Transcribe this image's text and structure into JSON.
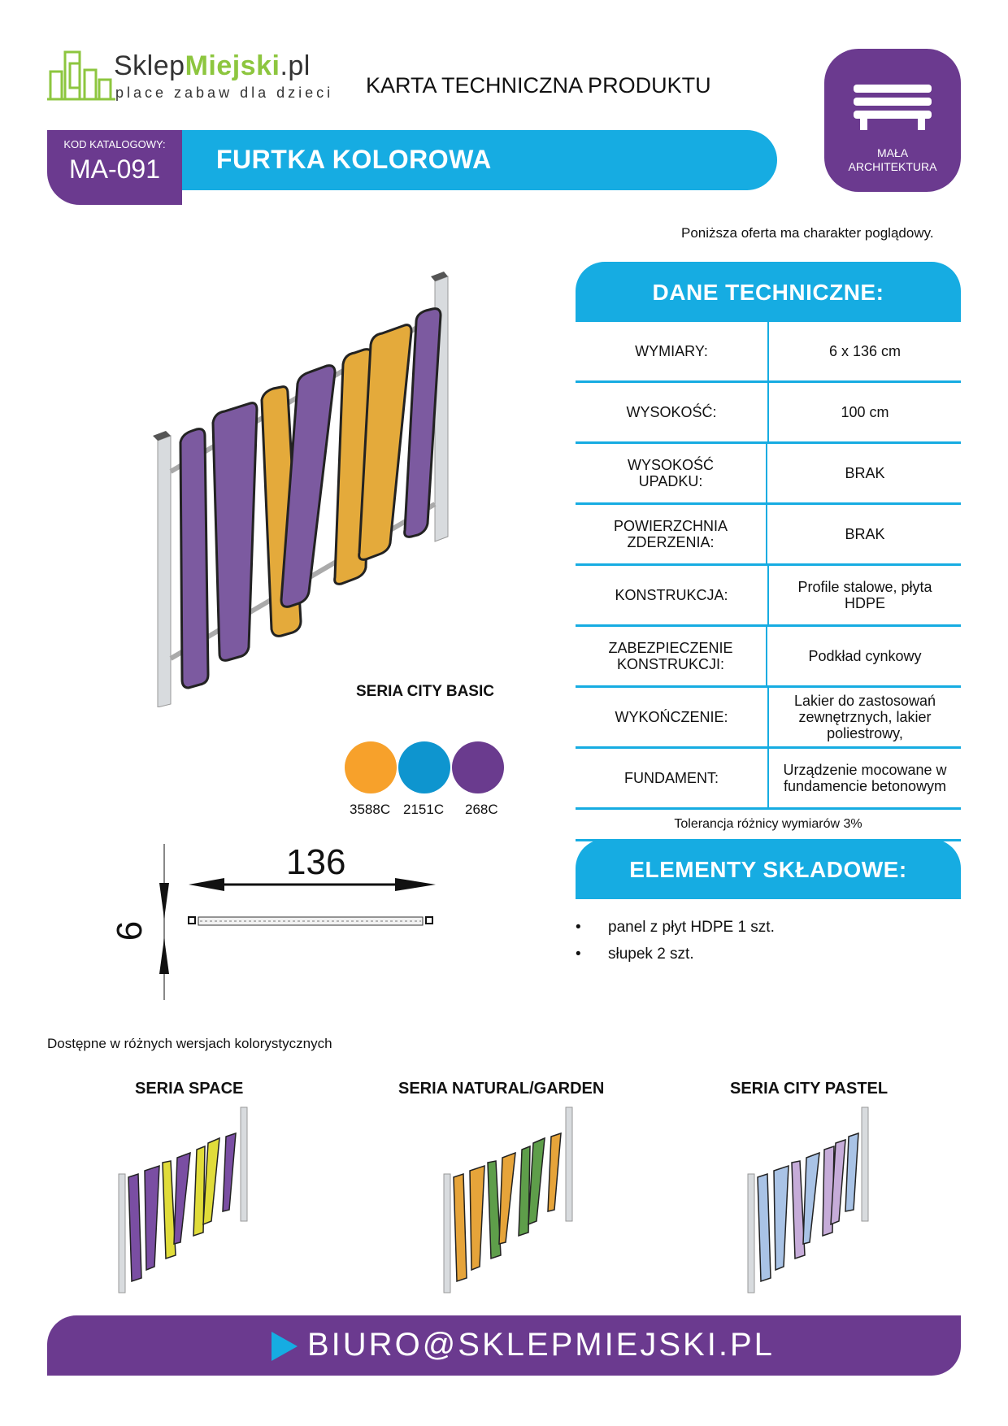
{
  "logo": {
    "brand_part1": "Sklep",
    "brand_part2": "Miejski",
    "brand_part3": ".pl",
    "tagline": "place zabaw dla dzieci"
  },
  "doc_title": "KARTA TECHNICZNA PRODUKTU",
  "category": {
    "icon": "bench-icon",
    "label_line1": "MAŁA",
    "label_line2": "ARCHITEKTURA"
  },
  "product": {
    "code_label": "KOD KATALOGOWY:",
    "code": "MA-091",
    "name": "FURTKA KOLOROWA"
  },
  "disclaimer": "Poniższa oferta ma charakter poglądowy.",
  "specs": {
    "title": "DANE TECHNICZNE:",
    "rows": [
      {
        "label": "WYMIARY:",
        "value": "6 x 136 cm"
      },
      {
        "label": "WYSOKOŚĆ:",
        "value": "100 cm"
      },
      {
        "label": "WYSOKOŚĆ UPADKU:",
        "value": "BRAK"
      },
      {
        "label": "POWIERZCHNIA ZDERZENIA:",
        "value": "BRAK"
      },
      {
        "label": "KONSTRUKCJA:",
        "value": "Profile stalowe, płyta HDPE"
      },
      {
        "label": "ZABEZPIECZENIE KONSTRUKCJI:",
        "value": "Podkład cynkowy"
      },
      {
        "label": "WYKOŃCZENIE:",
        "value": "Lakier do zastosowań zewnętrznych, lakier poliestrowy,"
      },
      {
        "label": "FUNDAMENT:",
        "value": "Urządzenie mocowane w fundamencie betonowym"
      }
    ],
    "tolerance": "Tolerancja różnicy wymiarów 3%"
  },
  "elements": {
    "title": "ELEMENTY SKŁADOWE:",
    "items": [
      "panel z płyt HDPE 1 szt.",
      "słupek 2 szt."
    ]
  },
  "main_series": "SERIA CITY BASIC",
  "colors": [
    {
      "code": "3588C",
      "hex": "#f7a12b"
    },
    {
      "code": "2151C",
      "hex": "#0e95cf"
    },
    {
      "code": "268C",
      "hex": "#6a3b8e"
    }
  ],
  "dimensions": {
    "width": "136",
    "depth": "6"
  },
  "available_note": "Dostępne w różnych wersjach kolorystycznych",
  "series": [
    {
      "name": "SERIA SPACE",
      "colors": [
        "#7a4ea3",
        "#e0dc3a"
      ]
    },
    {
      "name": "SERIA NATURAL/GARDEN",
      "colors": [
        "#e6a43a",
        "#5e9e4a"
      ]
    },
    {
      "name": "SERIA CITY PASTEL",
      "colors": [
        "#a9c3e6",
        "#c6acd9"
      ]
    }
  ],
  "footer": {
    "email": "BIURO@SKLEPMIEJSKI.PL"
  },
  "brand_colors": {
    "purple": "#6b3a8f",
    "blue": "#16ace2",
    "green": "#8dc63f"
  }
}
